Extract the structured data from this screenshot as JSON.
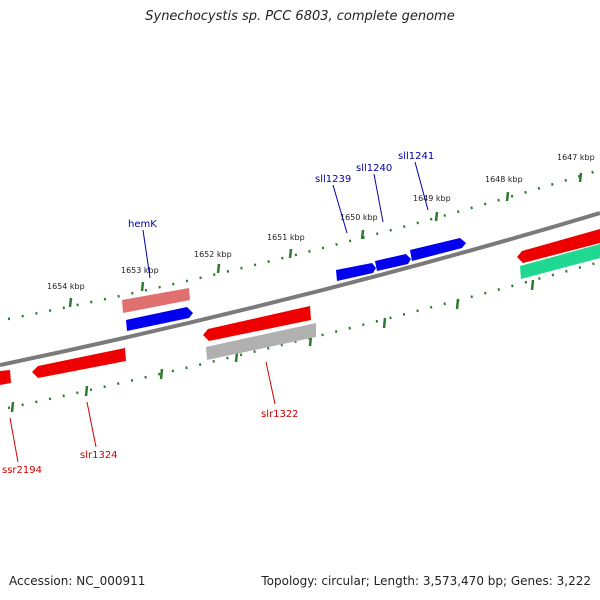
{
  "title": "Synechocystis sp. PCC 6803, complete genome",
  "footer": {
    "accession": "Accession: NC_000911",
    "summary": "Topology: circular; Length: 3,573,470 bp; Genes: 3,222"
  },
  "colors": {
    "backbone": "#7a7a7a",
    "ruler": "#2d7a2d",
    "forward_gene": "#0000ee",
    "reverse_gene": "#ee0000",
    "faded_gene": "#e07070",
    "pseudo_gene": "#b0b0b0",
    "rna_gene": "#20d890",
    "forward_label": "#0000aa",
    "reverse_label": "#cc0000"
  },
  "ruler": {
    "ticks": [
      "1647 kbp",
      "1648 kbp",
      "1649 kbp",
      "1650 kbp",
      "1651 kbp",
      "1652 kbp",
      "1653 kbp",
      "1654 kbp"
    ]
  },
  "genes": {
    "forward": [
      "hemK",
      "sll1239",
      "sll1240",
      "sll1241"
    ],
    "reverse": [
      "slr1322",
      "slr1324",
      "ssr2194"
    ]
  }
}
